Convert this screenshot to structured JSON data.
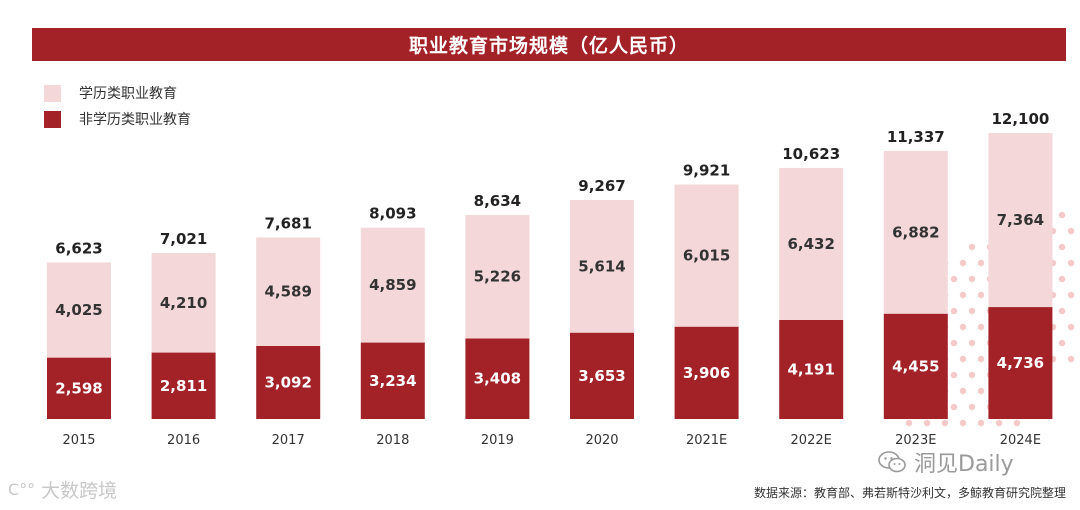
{
  "chart_data": {
    "type": "bar",
    "stacked": true,
    "title": "职业教育市场规模（亿人民币）",
    "categories": [
      "2015",
      "2016",
      "2017",
      "2018",
      "2019",
      "2020",
      "2021E",
      "2022E",
      "2023E",
      "2024E"
    ],
    "series": [
      {
        "name": "非学历类职业教育",
        "color": "#a32228",
        "values": [
          2598,
          2811,
          3092,
          3234,
          3408,
          3653,
          3906,
          4191,
          4455,
          4736
        ]
      },
      {
        "name": "学历类职业教育",
        "color": "#f4d7d8",
        "values": [
          4025,
          4210,
          4589,
          4859,
          5226,
          5614,
          6015,
          6432,
          6882,
          7364
        ]
      }
    ],
    "totals": [
      6623,
      7021,
      7681,
      8093,
      8634,
      9267,
      9921,
      10623,
      11337,
      12100
    ],
    "legend_order": [
      "学历类职业教育",
      "非学历类职业教育"
    ],
    "legend_position": "top-left",
    "ylim": [
      0,
      12100
    ],
    "xlabel": "",
    "ylabel": "",
    "grid": false
  },
  "source_note": "数据来源：教育部、弗若斯特沙利文，多鲸教育研究院整理",
  "watermark_left": "大数跨境",
  "watermark_left_logo": "C°°",
  "watermark_right": "洞见Daily",
  "wechat_icon": "wechat-icon"
}
